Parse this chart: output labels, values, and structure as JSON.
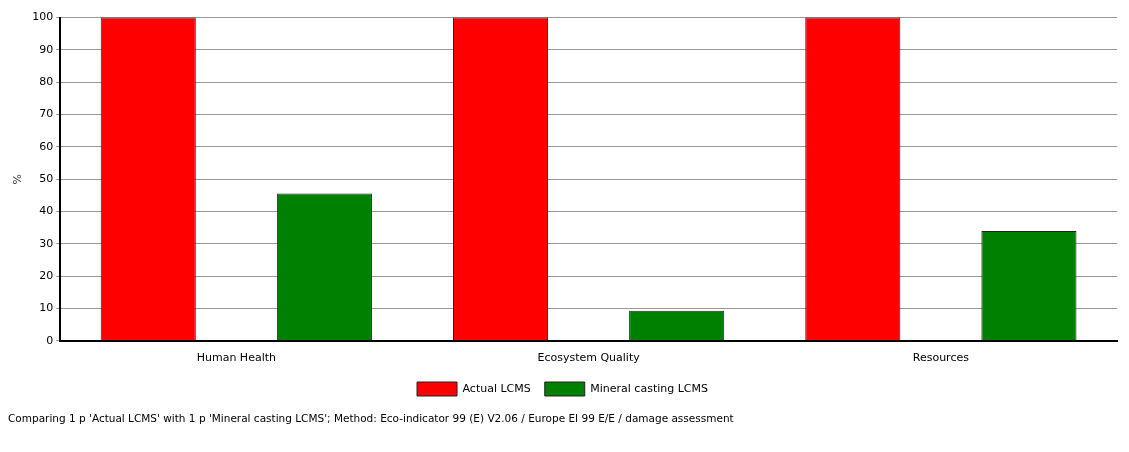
{
  "chart_data": {
    "type": "bar",
    "ylabel": "%",
    "categories": [
      "Human Health",
      "Ecosystem Quality",
      "Resources"
    ],
    "series": [
      {
        "name": "Actual LCMS",
        "color": "#ff0000",
        "values": [
          100,
          100,
          100
        ]
      },
      {
        "name": "Mineral casting LCMS",
        "color": "#008000",
        "values": [
          45.6,
          9.3,
          34
        ]
      }
    ],
    "ylim": [
      0,
      100
    ],
    "yticks": [
      0,
      10,
      20,
      30,
      40,
      50,
      60,
      70,
      80,
      90,
      100
    ],
    "grid": "y",
    "legend": "bottom",
    "annotations": [
      "Comparing 1 p 'Actual LCMS' with 1 p 'Mineral casting LCMS';  Method: Eco-indicator 99 (E) V2.06 /  Europe EI 99 E/E / damage assessment"
    ]
  }
}
